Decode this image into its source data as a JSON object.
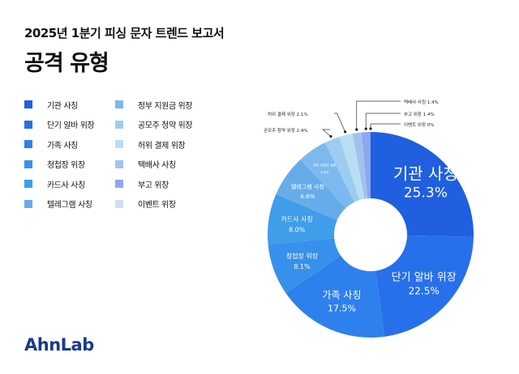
{
  "header": {
    "subtitle": "2025년 1분기 피싱 문자 트렌드 보고서",
    "title": "공격 유형"
  },
  "logo": "AhnLab",
  "chart_data": {
    "type": "pie",
    "donut": true,
    "legend": "left",
    "categories": [
      "기관 사칭",
      "단기 알바 위장",
      "가족 사칭",
      "청첩장 위장",
      "카드사 사칭",
      "텔레그램 사칭",
      "정부 지원금 위장",
      "공모주 청약 위장",
      "허위 결제 위장",
      "택배사 사칭",
      "부고 위장",
      "이벤트 위장"
    ],
    "values": [
      25.3,
      22.5,
      17.5,
      8.1,
      8.0,
      6.6,
      4.6,
      2.4,
      2.1,
      1.4,
      1.4,
      0
    ],
    "labels": [
      "25.3%",
      "22.5%",
      "17.5%",
      "8.1%",
      "8.0%",
      "6.6%",
      "4.6%",
      "2.4%",
      "2.1%",
      "1.4%",
      "1.4%",
      "0%"
    ],
    "colors": [
      "#1f5fe0",
      "#2770eb",
      "#2e80ec",
      "#3790ea",
      "#3f9de9",
      "#66acea",
      "#7cb9ee",
      "#9ccdf1",
      "#b9def4",
      "#a2c2ee",
      "#8ea7ef",
      "#d4dcf5"
    ]
  }
}
